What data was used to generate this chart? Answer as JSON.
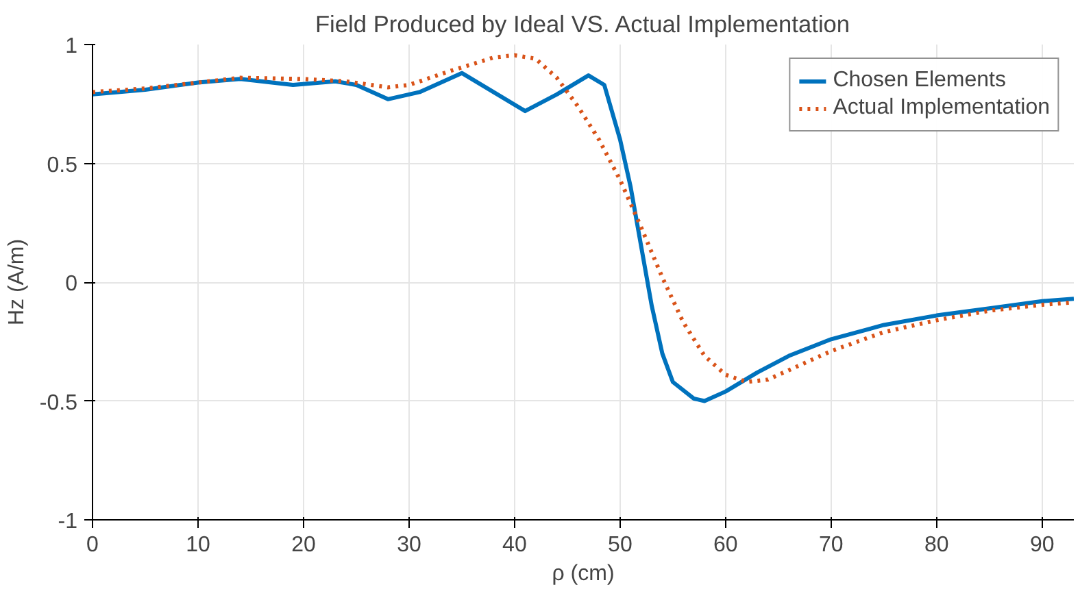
{
  "chart_data": {
    "type": "line",
    "title": "Field Produced by Ideal VS. Actual Implementation",
    "xlabel": "ρ (cm)",
    "ylabel": "Hz (A/m)",
    "xlim": [
      0,
      93
    ],
    "ylim": [
      -1,
      1
    ],
    "xticks": [
      0,
      10,
      20,
      30,
      40,
      50,
      60,
      70,
      80,
      90
    ],
    "yticks": [
      -1,
      -0.5,
      0,
      0.5,
      1
    ],
    "grid": true,
    "legend": "top right",
    "series": [
      {
        "name": "Chosen Elements",
        "color": "#0072bd",
        "line_style": "solid",
        "x": [
          0,
          5,
          10,
          14,
          19,
          23,
          25,
          28,
          31,
          35,
          38,
          41,
          44,
          47,
          48.5,
          50,
          51,
          52,
          53,
          54,
          55,
          57,
          58,
          60,
          63,
          66,
          70,
          75,
          80,
          85,
          90,
          93
        ],
        "values": [
          0.79,
          0.81,
          0.84,
          0.855,
          0.83,
          0.845,
          0.83,
          0.77,
          0.8,
          0.88,
          0.8,
          0.72,
          0.79,
          0.87,
          0.83,
          0.6,
          0.4,
          0.15,
          -0.1,
          -0.3,
          -0.42,
          -0.49,
          -0.5,
          -0.46,
          -0.38,
          -0.31,
          -0.24,
          -0.18,
          -0.14,
          -0.11,
          -0.08,
          -0.07
        ]
      },
      {
        "name": "Actual Implementation",
        "color": "#d95319",
        "line_style": "dotted",
        "x": [
          0,
          5,
          10,
          14,
          20,
          24,
          28,
          30,
          34,
          38,
          40,
          42,
          44,
          46,
          48,
          50,
          52,
          54,
          56,
          58,
          60,
          62,
          64,
          66,
          70,
          75,
          80,
          85,
          90,
          93
        ],
        "values": [
          0.8,
          0.815,
          0.84,
          0.86,
          0.855,
          0.845,
          0.82,
          0.83,
          0.89,
          0.945,
          0.955,
          0.94,
          0.86,
          0.74,
          0.6,
          0.43,
          0.23,
          0.02,
          -0.17,
          -0.31,
          -0.39,
          -0.42,
          -0.41,
          -0.37,
          -0.29,
          -0.21,
          -0.16,
          -0.12,
          -0.095,
          -0.085
        ]
      }
    ]
  }
}
